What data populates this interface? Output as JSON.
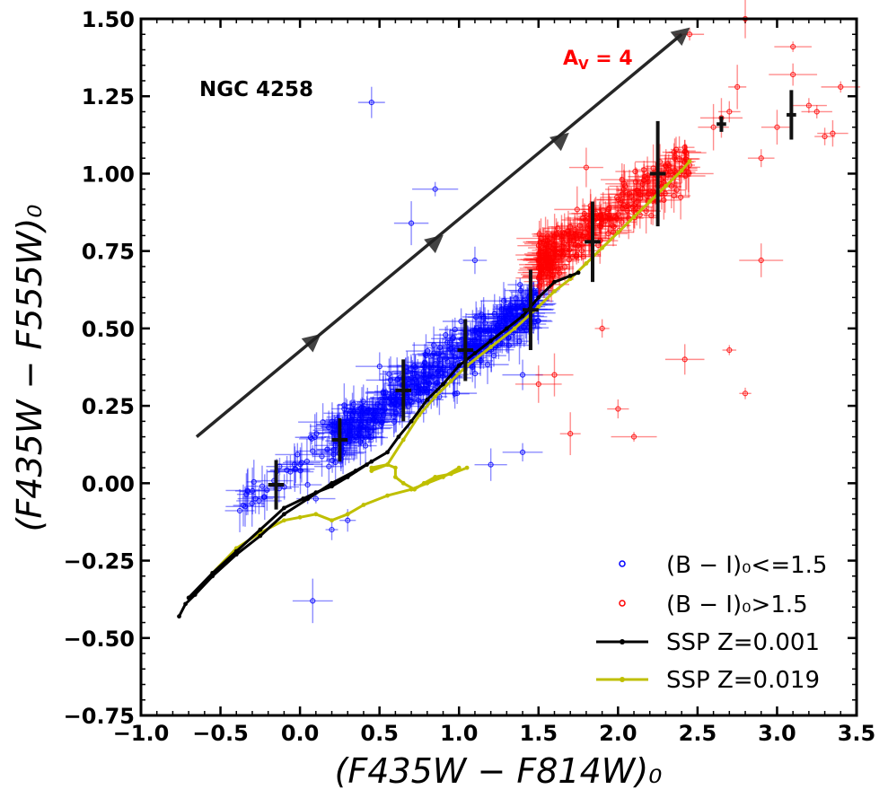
{
  "chart_data": {
    "type": "scatter",
    "title": "",
    "annotation": "NGC 4258",
    "reddening_label": "Aᵥ = 4",
    "reddening_label_main": "A",
    "reddening_label_sub": "V",
    "reddening_label_rest": " = 4",
    "xlabel": "(F435W − F814W)₀",
    "ylabel": "(F435W − F555W)₀",
    "xlim": [
      -1.0,
      3.5
    ],
    "ylim": [
      -0.75,
      1.5
    ],
    "xticks": [
      -1.0,
      -0.5,
      0.0,
      0.5,
      1.0,
      1.5,
      2.0,
      2.5,
      3.0,
      3.5
    ],
    "xtick_labels": [
      "−1.0",
      "−0.5",
      "0.0",
      "0.5",
      "1.0",
      "1.5",
      "2.0",
      "2.5",
      "3.0",
      "3.5"
    ],
    "yticks": [
      -0.75,
      -0.5,
      -0.25,
      0.0,
      0.25,
      0.5,
      0.75,
      1.0,
      1.25,
      1.5
    ],
    "ytick_labels": [
      "−0.75",
      "−0.50",
      "−0.25",
      "0.00",
      "0.25",
      "0.50",
      "0.75",
      "1.00",
      "1.25",
      "1.50"
    ],
    "colors": {
      "blue": "#0000ff",
      "red": "#ff0000",
      "black": "#000000",
      "yellow": "#bfbf00"
    },
    "legend": {
      "location": "lower-right",
      "entries": [
        {
          "label": "(B − I)₀<=1.5",
          "color": "#0000ff",
          "marker": "circle-open"
        },
        {
          "label": "(B − I)₀>1.5",
          "color": "#ff0000",
          "marker": "circle-open"
        },
        {
          "label": "SSP Z=0.001",
          "color": "#000000",
          "marker": "line-dot"
        },
        {
          "label": "SSP Z=0.019",
          "color": "#bfbf00",
          "marker": "line-dot"
        }
      ]
    },
    "reddening_vector": {
      "start": [
        -0.65,
        0.15
      ],
      "end": [
        2.4,
        1.45
      ],
      "markers": [
        [
          0.08,
          0.46
        ],
        [
          0.85,
          0.78
        ],
        [
          1.64,
          1.11
        ],
        [
          2.4,
          1.45
        ]
      ]
    },
    "binned_medians": [
      {
        "x": -0.15,
        "y": -0.005,
        "xerr": 0.05,
        "yerr": 0.08
      },
      {
        "x": 0.25,
        "y": 0.14,
        "xerr": 0.05,
        "yerr": 0.07
      },
      {
        "x": 0.65,
        "y": 0.3,
        "xerr": 0.05,
        "yerr": 0.1
      },
      {
        "x": 1.04,
        "y": 0.43,
        "xerr": 0.05,
        "yerr": 0.1
      },
      {
        "x": 1.45,
        "y": 0.56,
        "xerr": 0.05,
        "yerr": 0.13
      },
      {
        "x": 1.84,
        "y": 0.78,
        "xerr": 0.05,
        "yerr": 0.13
      },
      {
        "x": 2.25,
        "y": 1.0,
        "xerr": 0.05,
        "yerr": 0.17
      },
      {
        "x": 2.65,
        "y": 1.16,
        "xerr": 0.03,
        "yerr": 0.025
      },
      {
        "x": 3.09,
        "y": 1.19,
        "xerr": 0.03,
        "yerr": 0.08
      }
    ],
    "ssp_z0001": [
      [
        -0.76,
        -0.43
      ],
      [
        -0.72,
        -0.39
      ],
      [
        -0.66,
        -0.36
      ],
      [
        -0.55,
        -0.3
      ],
      [
        -0.4,
        -0.23
      ],
      [
        -0.25,
        -0.17
      ],
      [
        -0.1,
        -0.1
      ],
      [
        0.05,
        -0.05
      ],
      [
        0.2,
        0.0
      ],
      [
        0.35,
        0.04
      ],
      [
        0.45,
        0.07
      ],
      [
        0.55,
        0.1
      ],
      [
        0.62,
        0.15
      ],
      [
        0.7,
        0.2
      ],
      [
        0.8,
        0.27
      ],
      [
        0.9,
        0.32
      ],
      [
        1.0,
        0.38
      ],
      [
        1.1,
        0.42
      ],
      [
        1.2,
        0.46
      ],
      [
        1.3,
        0.5
      ],
      [
        1.4,
        0.54
      ],
      [
        1.5,
        0.6
      ],
      [
        1.6,
        0.65
      ],
      [
        1.7,
        0.67
      ],
      [
        1.75,
        0.68
      ]
    ],
    "ssp_z0001_branch": [
      [
        -0.7,
        -0.37
      ],
      [
        -0.55,
        -0.29
      ],
      [
        -0.4,
        -0.22
      ],
      [
        -0.25,
        -0.15
      ],
      [
        -0.1,
        -0.08
      ],
      [
        0.02,
        -0.05
      ],
      [
        0.1,
        -0.03
      ],
      [
        0.2,
        -0.01
      ],
      [
        0.3,
        0.02
      ],
      [
        0.42,
        0.06
      ]
    ],
    "ssp_z0019": [
      [
        -0.65,
        -0.35
      ],
      [
        -0.55,
        -0.29
      ],
      [
        -0.4,
        -0.21
      ],
      [
        -0.25,
        -0.16
      ],
      [
        -0.1,
        -0.12
      ],
      [
        0.0,
        -0.11
      ],
      [
        0.1,
        -0.1
      ],
      [
        0.2,
        -0.12
      ],
      [
        0.3,
        -0.1
      ],
      [
        0.4,
        -0.07
      ],
      [
        0.55,
        -0.04
      ],
      [
        0.7,
        -0.02
      ],
      [
        0.8,
        0.0
      ],
      [
        0.9,
        0.02
      ],
      [
        1.0,
        0.05
      ]
    ],
    "ssp_z0019_main": [
      [
        0.45,
        0.04
      ],
      [
        0.55,
        0.06
      ],
      [
        0.65,
        0.14
      ],
      [
        0.75,
        0.22
      ],
      [
        0.85,
        0.28
      ],
      [
        0.95,
        0.33
      ],
      [
        1.05,
        0.38
      ],
      [
        1.2,
        0.44
      ],
      [
        1.35,
        0.5
      ],
      [
        1.5,
        0.57
      ],
      [
        1.6,
        0.62
      ],
      [
        1.7,
        0.66
      ],
      [
        1.8,
        0.71
      ],
      [
        1.9,
        0.76
      ],
      [
        2.0,
        0.81
      ],
      [
        2.1,
        0.86
      ],
      [
        2.2,
        0.91
      ],
      [
        2.3,
        0.96
      ],
      [
        2.4,
        1.01
      ],
      [
        2.45,
        1.04
      ]
    ],
    "ssp_z0019_loop": [
      [
        0.45,
        0.05
      ],
      [
        0.55,
        0.06
      ],
      [
        0.6,
        0.05
      ],
      [
        0.6,
        0.02
      ],
      [
        0.65,
        0.0
      ],
      [
        0.72,
        -0.02
      ],
      [
        0.78,
        0.0
      ],
      [
        0.85,
        0.02
      ],
      [
        0.95,
        0.03
      ],
      [
        1.05,
        0.05
      ]
    ]
  }
}
